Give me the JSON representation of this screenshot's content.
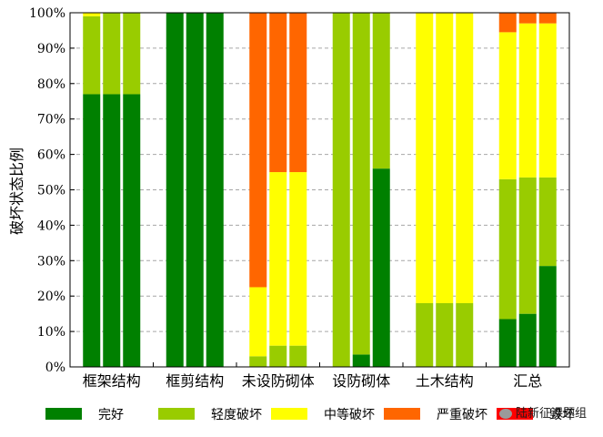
{
  "chart_data": {
    "type": "bar",
    "stacked": true,
    "normalized": true,
    "title": "",
    "xlabel": "",
    "ylabel": "破坏状态比例",
    "ylim": [
      0,
      100
    ],
    "y_ticks": [
      "0%",
      "10%",
      "20%",
      "30%",
      "40%",
      "50%",
      "60%",
      "70%",
      "80%",
      "90%",
      "100%"
    ],
    "grid": "horizontal dashed",
    "legend_position": "bottom",
    "categories": [
      "框架结构",
      "框剪结构",
      "未设防砌体",
      "设防砌体",
      "土木结构",
      "汇总"
    ],
    "bars_per_category": 3,
    "series": [
      {
        "name": "完好",
        "color": "#008000",
        "values": [
          [
            77,
            77,
            77
          ],
          [
            100,
            100,
            100
          ],
          [
            0,
            0,
            0
          ],
          [
            0,
            3.5,
            56
          ],
          [
            0,
            0,
            0
          ],
          [
            13.5,
            15,
            28.5
          ]
        ]
      },
      {
        "name": "轻度破坏",
        "color": "#99cc00",
        "values": [
          [
            22,
            23,
            23
          ],
          [
            0,
            0,
            0
          ],
          [
            3,
            6,
            6
          ],
          [
            100,
            96.5,
            44
          ],
          [
            18,
            18,
            18
          ],
          [
            39.5,
            38.5,
            25
          ]
        ]
      },
      {
        "name": "中等破坏",
        "color": "#ffff00",
        "values": [
          [
            1,
            0,
            0
          ],
          [
            0,
            0,
            0
          ],
          [
            19.5,
            49,
            49
          ],
          [
            0,
            0,
            0
          ],
          [
            82,
            82,
            82
          ],
          [
            41.5,
            43.5,
            43.5
          ]
        ]
      },
      {
        "name": "严重破坏",
        "color": "#ff6600",
        "values": [
          [
            0,
            0,
            0
          ],
          [
            0,
            0,
            0
          ],
          [
            77.5,
            45,
            45
          ],
          [
            0,
            0,
            0
          ],
          [
            0,
            0,
            0
          ],
          [
            5.5,
            3,
            3
          ]
        ]
      },
      {
        "name": "毁坏",
        "color": "#ff0000",
        "values": [
          [
            0,
            0,
            0
          ],
          [
            0,
            0,
            0
          ],
          [
            0,
            0,
            0
          ],
          [
            0,
            0,
            0
          ],
          [
            0,
            0,
            0
          ],
          [
            0,
            0,
            0
          ]
        ]
      }
    ]
  },
  "watermark": {
    "text": "陆新征课题组",
    "icon": "wechat-icon"
  }
}
